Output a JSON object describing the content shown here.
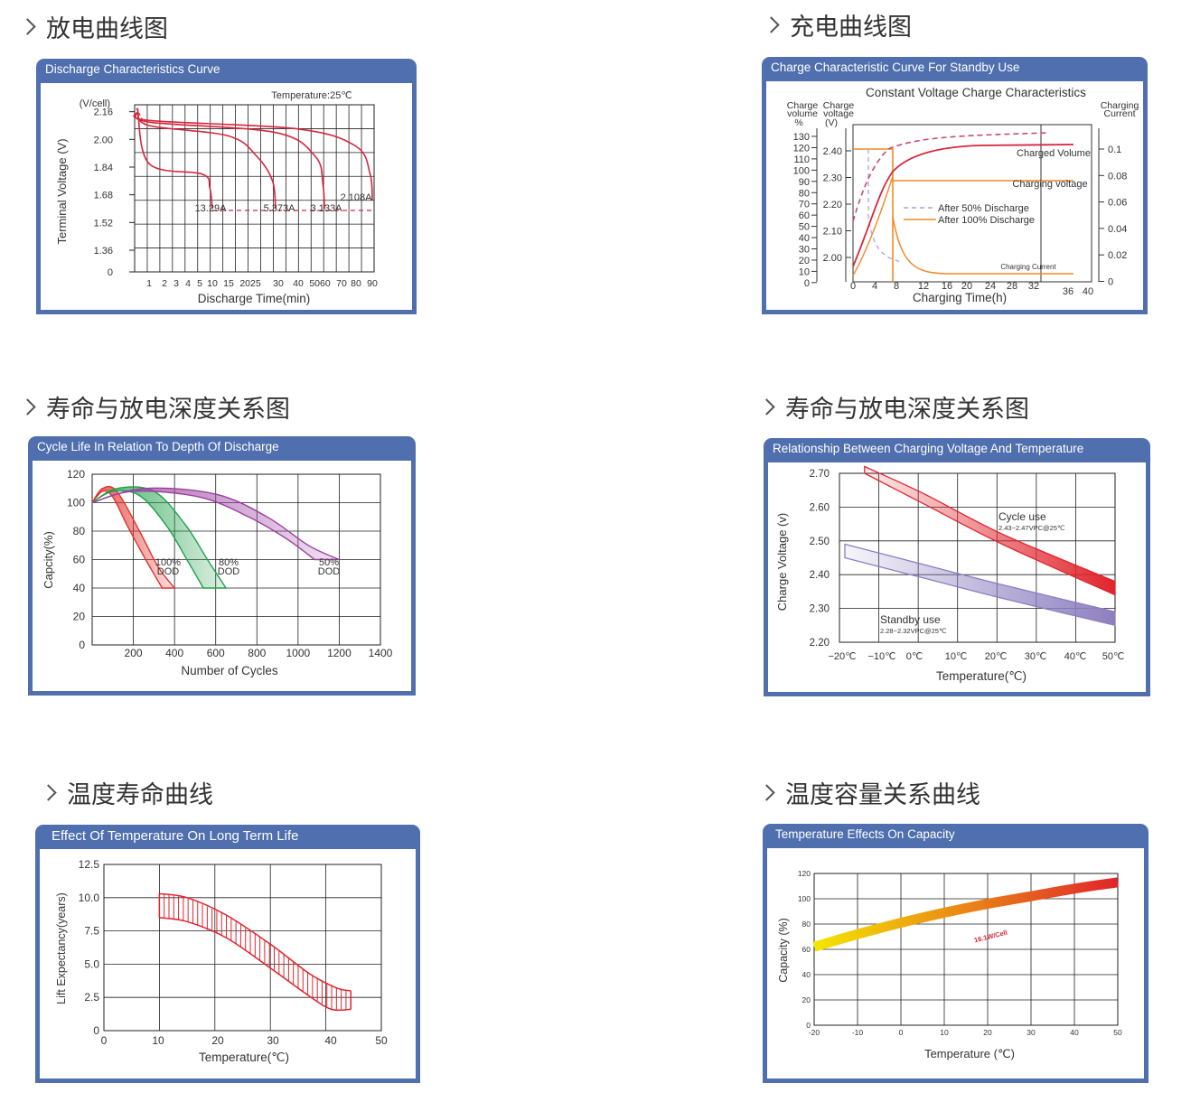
{
  "sections": [
    {
      "heading": "放电曲线图",
      "panel_title": "Discharge Characteristics Curve"
    },
    {
      "heading": "充电曲线图",
      "panel_title": "Charge Characteristic Curve For Standby Use"
    },
    {
      "heading": "寿命与放电深度关系图",
      "panel_title": "Cycle Life In Relation To Depth Of Discharge"
    },
    {
      "heading": "寿命与放电深度关系图",
      "panel_title": "Relationship Between Charging Voltage And Temperature"
    },
    {
      "heading": "温度寿命曲线",
      "panel_title": "Effect Of Temperature On Long Term Life"
    },
    {
      "heading": "温度容量关系曲线",
      "panel_title": "Temperature Effects On Capacity"
    }
  ],
  "chart_data": [
    {
      "type": "line",
      "ylabel": "Terminal Voltage (V)",
      "yunit": "(V/cell)",
      "xlabel": "Discharge Time(min)",
      "annotation": "Temperature:25℃",
      "y_ticks": [
        "2.16",
        "2.00",
        "1.84",
        "1.68",
        "1.52",
        "1.36",
        "0"
      ],
      "x_ticks": [
        "1",
        "2",
        "3",
        "4",
        "5",
        "10",
        "15",
        "2025",
        "30",
        "40",
        "5060",
        "70",
        "80",
        "90"
      ],
      "curve_labels": [
        "13.29A",
        "5.373A",
        "3.133A",
        "2.108A"
      ],
      "colors": {
        "curve": "#d7263d",
        "grid": "#222222"
      },
      "series": [
        {
          "name": "13.29A",
          "points": [
            [
              0.2,
              2.18
            ],
            [
              1,
              1.86
            ],
            [
              6,
              1.8
            ],
            [
              9,
              1.72
            ],
            [
              10,
              1.6
            ]
          ]
        },
        {
          "name": "5.373A",
          "points": [
            [
              0.2,
              2.16
            ],
            [
              1,
              2.08
            ],
            [
              15,
              2.02
            ],
            [
              24,
              1.9
            ],
            [
              29,
              1.76
            ],
            [
              30,
              1.6
            ]
          ]
        },
        {
          "name": "3.133A",
          "points": [
            [
              0.2,
              2.16
            ],
            [
              1,
              2.1
            ],
            [
              30,
              2.04
            ],
            [
              48,
              1.9
            ],
            [
              52,
              1.74
            ],
            [
              53,
              1.6
            ]
          ]
        },
        {
          "name": "2.108A",
          "points": [
            [
              0.2,
              2.16
            ],
            [
              1,
              2.11
            ],
            [
              40,
              2.06
            ],
            [
              76,
              1.96
            ],
            [
              88,
              1.8
            ],
            [
              90,
              1.65
            ]
          ]
        }
      ]
    },
    {
      "type": "line",
      "title": "Constant Voltage Charge Characteristics",
      "xlabel": "Charging Time(h)",
      "y1_label": [
        "Charge",
        "volume",
        "%"
      ],
      "y2_label": [
        "Charge",
        "voltage",
        "(V)"
      ],
      "y3_label": [
        "Charging",
        "Current"
      ],
      "x_ticks": [
        "0",
        "4",
        "8",
        "12",
        "16",
        "20",
        "24",
        "28",
        "32",
        "36",
        "40"
      ],
      "y1_ticks": [
        "130",
        "120",
        "110",
        "100",
        "90",
        "80",
        "70",
        "60",
        "50",
        "40",
        "30",
        "20",
        "10",
        "0"
      ],
      "y2_ticks": [
        "2.40",
        "2.30",
        "2.20",
        "2.10",
        "2.00"
      ],
      "y3_ticks": [
        "0.1",
        "0.08",
        "0.06",
        "0.04",
        "0.02",
        "0"
      ],
      "labels": {
        "charged_volume": "Charged Volume",
        "charging_voltage": "Charging voltage",
        "charging_current": "Charging Current"
      },
      "legend": [
        "After 50% Discharge",
        "After 100% Discharge"
      ],
      "colors": {
        "volume": "#d7263d",
        "volume_50": "#c84a7a",
        "voltage": "#f08a24",
        "current_50": "#b89fcf"
      }
    },
    {
      "type": "area",
      "ylabel": "Capcity(%)",
      "xlabel": "Number of Cycles",
      "y_ticks": [
        "120",
        "100",
        "80",
        "60",
        "40",
        "20",
        "0"
      ],
      "x_ticks": [
        "200",
        "400",
        "600",
        "800",
        "1000",
        "1200",
        "1400"
      ],
      "ylim": [
        0,
        120
      ],
      "xlim": [
        0,
        1400
      ],
      "bands": [
        {
          "name": "100% DOD",
          "label": [
            "100%",
            "DOD"
          ],
          "color": "#e0342f",
          "end_x": 400
        },
        {
          "name": "80% DOD",
          "label": [
            "80%",
            "DOD"
          ],
          "color": "#20a04a",
          "end_x": 650
        },
        {
          "name": "50% DOD",
          "label": [
            "50%",
            "DOD"
          ],
          "color": "#9b3fa0",
          "end_x": 1200
        }
      ]
    },
    {
      "type": "area",
      "ylabel": "Charge Voltage (v)",
      "xlabel": "Temperature(℃)",
      "y_ticks": [
        "2.70",
        "2.60",
        "2.50",
        "2.40",
        "2.30",
        "2.20"
      ],
      "x_ticks": [
        "−20℃",
        "−10℃",
        "0℃",
        "10℃",
        "20℃",
        "30℃",
        "40℃",
        "50℃"
      ],
      "ylim": [
        2.2,
        2.7
      ],
      "bands": [
        {
          "name": "Cycle use",
          "note": "2.43~2.47VPC@25℃",
          "color": "#e0242c",
          "upper": [
            [
              -15,
              2.72
            ],
            [
              0,
              2.64
            ],
            [
              20,
              2.52
            ],
            [
              50,
              2.38
            ]
          ],
          "lower": [
            [
              -15,
              2.7
            ],
            [
              0,
              2.61
            ],
            [
              20,
              2.49
            ],
            [
              50,
              2.34
            ]
          ]
        },
        {
          "name": "Standby use",
          "note": "2.28~2.32VPC@25℃",
          "color": "#8d7fc0",
          "upper": [
            [
              -20,
              2.49
            ],
            [
              0,
              2.43
            ],
            [
              20,
              2.37
            ],
            [
              50,
              2.29
            ]
          ],
          "lower": [
            [
              -20,
              2.45
            ],
            [
              0,
              2.39
            ],
            [
              20,
              2.33
            ],
            [
              50,
              2.25
            ]
          ]
        }
      ]
    },
    {
      "type": "area",
      "ylabel": "Lift Expectancy(years)",
      "xlabel": "Temperature(℃)",
      "y_ticks": [
        "12.5",
        "10.0",
        "7.5",
        "5.0",
        "2.5",
        "0"
      ],
      "x_ticks": [
        "0",
        "10",
        "20",
        "30",
        "40",
        "50"
      ],
      "ylim": [
        0,
        12.5
      ],
      "xlim": [
        0,
        50
      ],
      "upper": [
        [
          10,
          10.3
        ],
        [
          15,
          10.0
        ],
        [
          22,
          8.7
        ],
        [
          30,
          6.5
        ],
        [
          37,
          4.3
        ],
        [
          42,
          3.2
        ],
        [
          44.5,
          3.0
        ]
      ],
      "lower": [
        [
          10,
          8.5
        ],
        [
          15,
          8.2
        ],
        [
          22,
          7.0
        ],
        [
          30,
          4.7
        ],
        [
          37,
          2.6
        ],
        [
          41,
          1.6
        ],
        [
          44.5,
          1.6
        ]
      ],
      "color": "#e0242c"
    },
    {
      "type": "line",
      "ylabel": "Capacity (%)",
      "xlabel": "Temperature (℃)",
      "annotation": "16.1W/Cell",
      "y_ticks": [
        "120",
        "100",
        "80",
        "60",
        "40",
        "20",
        "0"
      ],
      "x_ticks": [
        "-20",
        "-10",
        "0",
        "10",
        "20",
        "30",
        "40",
        "50"
      ],
      "ylim": [
        0,
        120
      ],
      "xlim": [
        -20,
        50
      ],
      "points": [
        [
          -20,
          62
        ],
        [
          -10,
          72
        ],
        [
          0,
          81
        ],
        [
          10,
          89
        ],
        [
          20,
          96
        ],
        [
          30,
          102
        ],
        [
          40,
          108
        ],
        [
          50,
          113
        ]
      ],
      "colors": {
        "start": "#f4e600",
        "end": "#e0242c"
      }
    }
  ]
}
